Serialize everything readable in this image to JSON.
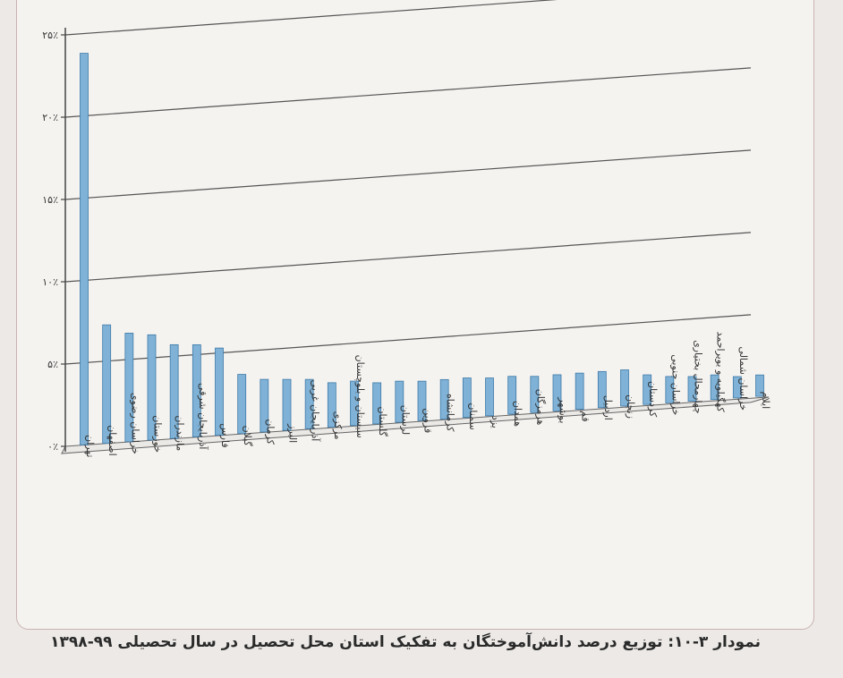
{
  "chart_data": {
    "type": "bar",
    "categories": [
      "تهران",
      "اصفهان",
      "خراسان رضوی",
      "خوزستان",
      "مازندران",
      "آذربایجان شرقی",
      "فارس",
      "گیلان",
      "کرمان",
      "البرز",
      "آذربایجان غربی",
      "مرکزی",
      "سیستان و بلوچستان",
      "گلستان",
      "لرستان",
      "قزوین",
      "کرمانشاه",
      "سمنان",
      "یزد",
      "همدان",
      "هرمزگان",
      "بوشهر",
      "قم",
      "اردبیل",
      "زنجان",
      "کردستان",
      "خراسان جنوبی",
      "چهارمحال بختیاری",
      "کهگیلویه و بویراحمد",
      "خراسان شمالی",
      "ایلام"
    ],
    "values": [
      23.8,
      7.2,
      6.6,
      6.4,
      5.7,
      5.6,
      5.3,
      3.6,
      3.2,
      3.1,
      3.0,
      2.7,
      2.7,
      2.5,
      2.5,
      2.4,
      2.4,
      2.4,
      2.3,
      2.3,
      2.2,
      2.2,
      2.2,
      2.2,
      2.2,
      1.8,
      1.6,
      1.5,
      1.5,
      1.3,
      1.3
    ],
    "yticks": [
      "۰٪",
      "۵٪",
      "۱۰٪",
      "۱۵٪",
      "۲۰٪",
      "۲۵٪"
    ],
    "ylim": [
      0,
      25
    ],
    "grid": true,
    "bar_color": "#7fb2d6"
  },
  "caption": "نمودار ۳-۱۰: توزیع درصد دانش‌آموختگان به تفکیک استان محل تحصیل در سال تحصیلی ۹۹-۱۳۹۸"
}
